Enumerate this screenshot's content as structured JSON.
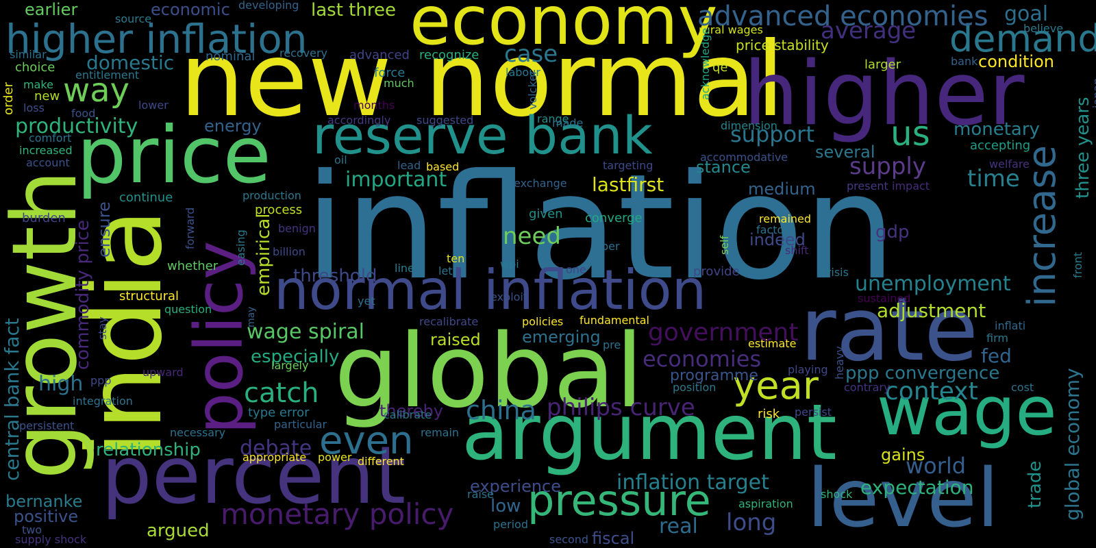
{
  "words": [
    {
      "text": "inflation",
      "color": "#2e7094"
    },
    {
      "text": "new normal",
      "color": "#e8e51a"
    },
    {
      "text": "economy",
      "color": "#e2e418"
    },
    {
      "text": "higher",
      "color": "#46277c"
    },
    {
      "text": "global",
      "color": "#7cd250"
    },
    {
      "text": "argument",
      "color": "#2eb37c"
    },
    {
      "text": "normal inflation",
      "color": "#3e4a89"
    },
    {
      "text": "reserve bank",
      "color": "#21918c"
    },
    {
      "text": "percent",
      "color": "#46337e"
    },
    {
      "text": "price",
      "color": "#52c569"
    },
    {
      "text": "india",
      "color": "#b5de2b"
    },
    {
      "text": "growth",
      "color": "#a2da37"
    },
    {
      "text": "policy",
      "color": "#5b1f83"
    },
    {
      "text": "rate",
      "color": "#3b528b"
    },
    {
      "text": "level",
      "color": "#355f8d"
    },
    {
      "text": "wage",
      "color": "#26ad81"
    },
    {
      "text": "higher inflation",
      "color": "#2c728e"
    },
    {
      "text": "pressure",
      "color": "#35b779"
    },
    {
      "text": "year",
      "color": "#c0df25"
    },
    {
      "text": "increase",
      "color": "#31688e"
    },
    {
      "text": "demand",
      "color": "#2a788e"
    },
    {
      "text": "advanced economies",
      "color": "#33638d"
    },
    {
      "text": "monetary policy",
      "color": "#481b6d"
    },
    {
      "text": "philips curve",
      "color": "#482475"
    },
    {
      "text": "china",
      "color": "#2d708e"
    },
    {
      "text": "even",
      "color": "#2d6f8e"
    },
    {
      "text": "catch",
      "color": "#2ab07f"
    },
    {
      "text": "government",
      "color": "#440f5c"
    },
    {
      "text": "economies",
      "color": "#472d7b"
    },
    {
      "text": "way",
      "color": "#6ece58"
    },
    {
      "text": "us",
      "color": "#2bb07f"
    },
    {
      "text": "context",
      "color": "#25848e"
    },
    {
      "text": "inflation target",
      "color": "#26818e"
    },
    {
      "text": "long",
      "color": "#3e4c8a"
    },
    {
      "text": "world",
      "color": "#345e8d"
    },
    {
      "text": "wage spiral",
      "color": "#58c765"
    },
    {
      "text": "unemployment",
      "color": "#26828e"
    },
    {
      "text": "ppp convergence",
      "color": "#2a788e"
    },
    {
      "text": "productivity",
      "color": "#2fb47c"
    },
    {
      "text": "lastfirst",
      "color": "#dde318"
    },
    {
      "text": "supply",
      "color": "#5c3c8a"
    },
    {
      "text": "time",
      "color": "#27808e"
    },
    {
      "text": "important",
      "color": "#22a785"
    },
    {
      "text": "support",
      "color": "#2a768e"
    },
    {
      "text": "case",
      "color": "#2a778e"
    },
    {
      "text": "average",
      "color": "#42307f"
    },
    {
      "text": "goal",
      "color": "#2d708e"
    },
    {
      "text": "domestic",
      "color": "#29798e"
    },
    {
      "text": "need",
      "color": "#6ccd5a"
    },
    {
      "text": "debate",
      "color": "#453581"
    },
    {
      "text": "expectation",
      "color": "#2db27d"
    },
    {
      "text": "adjustment",
      "color": "#b2dd2d"
    },
    {
      "text": "experience",
      "color": "#3d4e8a"
    },
    {
      "text": "monetary",
      "color": "#277e8e"
    },
    {
      "text": "last three",
      "color": "#a5db36"
    },
    {
      "text": "earlier",
      "color": "#63cb5f"
    },
    {
      "text": "economic",
      "color": "#3c4f8a"
    },
    {
      "text": "global economy",
      "color": "#2b758e"
    },
    {
      "text": "three years",
      "color": "#21918c"
    },
    {
      "text": "trade",
      "color": "#20928c"
    },
    {
      "text": "central bank fact",
      "color": "#2a788e"
    },
    {
      "text": "commodity price",
      "color": "#482878"
    },
    {
      "text": "empirical",
      "color": "#b8de29"
    },
    {
      "text": "relationship",
      "color": "#2db27d"
    },
    {
      "text": "medium",
      "color": "#33638d"
    },
    {
      "text": "indeed",
      "color": "#3e4989"
    },
    {
      "text": "gdp",
      "color": "#46337f"
    },
    {
      "text": "stance",
      "color": "#23898e"
    },
    {
      "text": "several",
      "color": "#2a778e"
    },
    {
      "text": "threshold",
      "color": "#3e4989"
    },
    {
      "text": "especially",
      "color": "#25ab82"
    },
    {
      "text": "high",
      "color": "#2c718e"
    },
    {
      "text": "raised",
      "color": "#b8de29"
    },
    {
      "text": "emerging",
      "color": "#2c728e"
    },
    {
      "text": "fed",
      "color": "#32658e"
    },
    {
      "text": "gains",
      "color": "#d8e219"
    },
    {
      "text": "bernanke",
      "color": "#287c8e"
    },
    {
      "text": "positive",
      "color": "#3b528b"
    },
    {
      "text": "argued",
      "color": "#a8db34"
    },
    {
      "text": "energy",
      "color": "#33628d"
    },
    {
      "text": "programme",
      "color": "#3a548c"
    },
    {
      "text": "low",
      "color": "#31668e"
    },
    {
      "text": "real",
      "color": "#2f6b8e"
    },
    {
      "text": "fiscal",
      "color": "#3d4d8a"
    },
    {
      "text": "thereby",
      "color": "#482475"
    },
    {
      "text": "ensure",
      "color": "#3b528b"
    },
    {
      "text": "condition",
      "color": "#fde725"
    },
    {
      "text": "price stability",
      "color": "#c8e020"
    },
    {
      "text": "rural wages",
      "color": "#d2e21b"
    },
    {
      "text": "labour",
      "color": "#29798e"
    },
    {
      "text": "recognize",
      "color": "#29af7f"
    },
    {
      "text": "advanced",
      "color": "#414487"
    },
    {
      "text": "recovery",
      "color": "#2c728e"
    },
    {
      "text": "nominal",
      "color": "#31678e"
    },
    {
      "text": "source",
      "color": "#297a8e"
    },
    {
      "text": "developing",
      "color": "#33638d"
    },
    {
      "text": "similar",
      "color": "#2c718e"
    },
    {
      "text": "choice",
      "color": "#6ccd5a"
    },
    {
      "text": "make",
      "color": "#2fb47c"
    },
    {
      "text": "new",
      "color": "#b5de2b"
    },
    {
      "text": "loss",
      "color": "#3d4e8a"
    },
    {
      "text": "order",
      "color": "#e5e419"
    },
    {
      "text": "entitlement",
      "color": "#2a788e"
    },
    {
      "text": "food",
      "color": "#3b528b"
    },
    {
      "text": "lower",
      "color": "#3e4989"
    },
    {
      "text": "comfort",
      "color": "#2c728e"
    },
    {
      "text": "increased",
      "color": "#2fb47c"
    },
    {
      "text": "account",
      "color": "#3b528b"
    },
    {
      "text": "force",
      "color": "#29798e"
    },
    {
      "text": "much",
      "color": "#5ec962"
    },
    {
      "text": "months",
      "color": "#440154"
    },
    {
      "text": "accordingly",
      "color": "#443a83"
    },
    {
      "text": "suggested",
      "color": "#3e4989"
    },
    {
      "text": "volcker",
      "color": "#31688e"
    },
    {
      "text": "range",
      "color": "#228c8d"
    },
    {
      "text": "made",
      "color": "#2c728e"
    },
    {
      "text": "acknowledge",
      "color": "#22a884"
    },
    {
      "text": "qe",
      "color": "#c2df23"
    },
    {
      "text": "larger",
      "color": "#b0dd2f"
    },
    {
      "text": "believe",
      "color": "#2a788e"
    },
    {
      "text": "bank",
      "color": "#33638d"
    },
    {
      "text": "japan",
      "color": "#3b528b"
    },
    {
      "text": "accepting",
      "color": "#1f9e89"
    },
    {
      "text": "dimension",
      "color": "#25848e"
    },
    {
      "text": "accommodative",
      "color": "#3b528b"
    },
    {
      "text": "welfare",
      "color": "#46337f"
    },
    {
      "text": "oil",
      "color": "#2c728e"
    },
    {
      "text": "lead",
      "color": "#33638d"
    },
    {
      "text": "based",
      "color": "#fde725"
    },
    {
      "text": "targeting",
      "color": "#3e4989"
    },
    {
      "text": "exchange",
      "color": "#33638d"
    },
    {
      "text": "present",
      "color": "#443a83"
    },
    {
      "text": "impact",
      "color": "#472c7a"
    },
    {
      "text": "front",
      "color": "#277f8e"
    },
    {
      "text": "continue",
      "color": "#21918c"
    },
    {
      "text": "production",
      "color": "#2a788e"
    },
    {
      "text": "forward",
      "color": "#3b528b"
    },
    {
      "text": "process",
      "color": "#c2df23"
    },
    {
      "text": "burden",
      "color": "#414487"
    },
    {
      "text": "benign",
      "color": "#46337f"
    },
    {
      "text": "given",
      "color": "#20928c"
    },
    {
      "text": "converge",
      "color": "#22a884"
    },
    {
      "text": "remained",
      "color": "#fde725"
    },
    {
      "text": "factor",
      "color": "#2c728e"
    },
    {
      "text": "self",
      "color": "#7ad151"
    },
    {
      "text": "shift",
      "color": "#482878"
    },
    {
      "text": "whether",
      "color": "#5ec962"
    },
    {
      "text": "easing",
      "color": "#2a788e"
    },
    {
      "text": "billion",
      "color": "#3e4989"
    },
    {
      "text": "per",
      "color": "#2c728e"
    },
    {
      "text": "ten",
      "color": "#e5e419"
    },
    {
      "text": "line",
      "color": "#287c8e"
    },
    {
      "text": "let",
      "color": "#2c728e"
    },
    {
      "text": "wpi",
      "color": "#2a788e"
    },
    {
      "text": "one",
      "color": "#414487"
    },
    {
      "text": "provide",
      "color": "#404688"
    },
    {
      "text": "crisis",
      "color": "#2a788e"
    },
    {
      "text": "structural",
      "color": "#fde725"
    },
    {
      "text": "question",
      "color": "#29af7f"
    },
    {
      "text": "may",
      "color": "#33638d"
    },
    {
      "text": "stay",
      "color": "#3e4989"
    },
    {
      "text": "yet",
      "color": "#2c728e"
    },
    {
      "text": "exploit",
      "color": "#3b528b"
    },
    {
      "text": "recalibrate",
      "color": "#3e4989"
    },
    {
      "text": "policies",
      "color": "#fde725"
    },
    {
      "text": "fundamental",
      "color": "#fde725"
    },
    {
      "text": "estimate",
      "color": "#fde725"
    },
    {
      "text": "sustained",
      "color": "#440154"
    },
    {
      "text": "inflati",
      "color": "#31688e"
    },
    {
      "text": "firm",
      "color": "#2a788e"
    },
    {
      "text": "pre",
      "color": "#2c728e"
    },
    {
      "text": "heavy",
      "color": "#3b528b"
    },
    {
      "text": "playing",
      "color": "#3e4989"
    },
    {
      "text": "contrary",
      "color": "#46337f"
    },
    {
      "text": "cost",
      "color": "#2c728e"
    },
    {
      "text": "largely",
      "color": "#6ccd5a"
    },
    {
      "text": "upward",
      "color": "#482878"
    },
    {
      "text": "ppp",
      "color": "#3e4989"
    },
    {
      "text": "integration",
      "color": "#2c728e"
    },
    {
      "text": "position",
      "color": "#2a788e"
    },
    {
      "text": "type error",
      "color": "#29798e"
    },
    {
      "text": "calibrate",
      "color": "#2a788e"
    },
    {
      "text": "particular",
      "color": "#33638d"
    },
    {
      "text": "risk",
      "color": "#fde725"
    },
    {
      "text": "persist",
      "color": "#3e4989"
    },
    {
      "text": "persistent",
      "color": "#3b528b"
    },
    {
      "text": "necessary",
      "color": "#2c728e"
    },
    {
      "text": "remain",
      "color": "#2c728e"
    },
    {
      "text": "appropriate",
      "color": "#fde725"
    },
    {
      "text": "power",
      "color": "#e5e419"
    },
    {
      "text": "different",
      "color": "#fde725"
    },
    {
      "text": "raise",
      "color": "#2c728e"
    },
    {
      "text": "aspiration",
      "color": "#2fb47c"
    },
    {
      "text": "shock",
      "color": "#2fb47c"
    },
    {
      "text": "two",
      "color": "#3b528b"
    },
    {
      "text": "supply shock",
      "color": "#46337f"
    },
    {
      "text": "period",
      "color": "#2c728e"
    },
    {
      "text": "second",
      "color": "#3b528b"
    }
  ]
}
